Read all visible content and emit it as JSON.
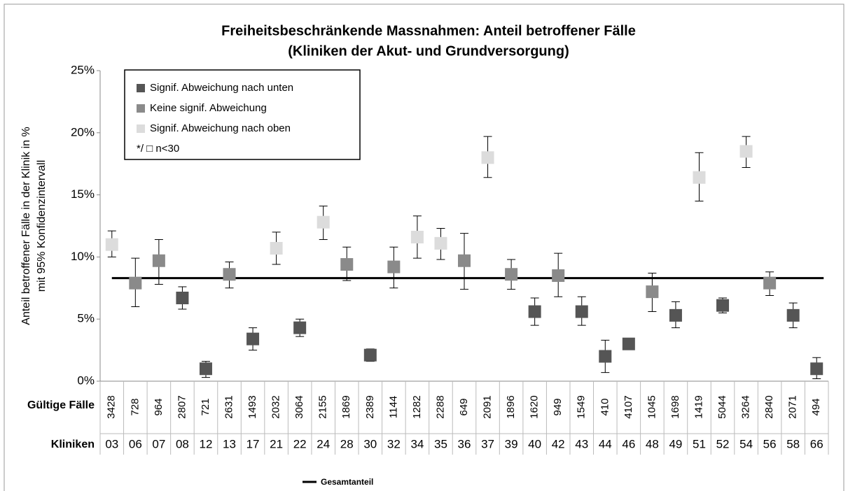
{
  "chart_data": {
    "type": "errorbar",
    "title": [
      "Freiheitsbeschränkende Massnahmen: Anteil betroffener Fälle",
      "(Kliniken der Akut- und Grundversorgung)"
    ],
    "ylabel": [
      "Anteil betroffener Fälle in der Klinik in %",
      "mit 95% Konfidenzintervall"
    ],
    "row_labels": [
      "Gültige Fälle",
      "Kliniken"
    ],
    "categories": [
      "03",
      "06",
      "07",
      "08",
      "12",
      "13",
      "17",
      "21",
      "22",
      "24",
      "28",
      "30",
      "32",
      "34",
      "35",
      "36",
      "37",
      "39",
      "40",
      "42",
      "43",
      "44",
      "46",
      "48",
      "49",
      "51",
      "52",
      "54",
      "56",
      "58",
      "66"
    ],
    "cases": [
      "3428",
      "728",
      "964",
      "2807",
      "721",
      "2631",
      "1493",
      "2032",
      "3064",
      "2155",
      "1869",
      "2389",
      "1144",
      "1282",
      "2288",
      "649",
      "2091",
      "1896",
      "1620",
      "949",
      "1549",
      "410",
      "4107",
      "1045",
      "1698",
      "1419",
      "5044",
      "3264",
      "2840",
      "2071",
      "494"
    ],
    "values": [
      11.0,
      7.9,
      9.7,
      6.7,
      1.0,
      8.6,
      3.4,
      10.7,
      4.3,
      12.8,
      9.4,
      2.1,
      9.2,
      11.6,
      11.1,
      9.7,
      18.0,
      8.6,
      5.6,
      8.5,
      5.6,
      2.0,
      3.0,
      7.2,
      5.3,
      16.4,
      6.1,
      18.5,
      7.9,
      5.3,
      1.0
    ],
    "lower": [
      10.0,
      6.0,
      7.8,
      5.8,
      0.3,
      7.5,
      2.5,
      9.4,
      3.6,
      11.4,
      8.1,
      1.6,
      7.5,
      9.9,
      9.8,
      7.4,
      16.4,
      7.4,
      4.5,
      6.8,
      4.5,
      0.7,
      2.6,
      5.6,
      4.3,
      14.5,
      5.5,
      17.2,
      6.9,
      4.3,
      0.2
    ],
    "upper": [
      12.1,
      9.9,
      11.4,
      7.6,
      1.6,
      9.6,
      4.3,
      12.0,
      5.0,
      14.1,
      10.8,
      2.6,
      10.8,
      13.3,
      12.3,
      11.9,
      19.7,
      9.8,
      6.7,
      10.3,
      6.8,
      3.3,
      3.4,
      8.7,
      6.4,
      18.4,
      6.7,
      19.7,
      8.8,
      6.3,
      1.9
    ],
    "groups": [
      2,
      1,
      1,
      0,
      0,
      1,
      0,
      2,
      0,
      2,
      1,
      0,
      1,
      2,
      2,
      1,
      2,
      1,
      0,
      1,
      0,
      0,
      0,
      1,
      0,
      2,
      0,
      2,
      1,
      0,
      0
    ],
    "legend": [
      {
        "name": "Signif. Abweichung nach unten",
        "color": "#555555"
      },
      {
        "name": "Keine signif. Abweichung",
        "color": "#8a8a8a"
      },
      {
        "name": "Signif. Abweichung nach oben",
        "color": "#dcdcdc"
      }
    ],
    "legend_note": "*/ □ n<30",
    "reference": {
      "name": "Gesamtanteil",
      "value": 8.3,
      "color": "#000000"
    },
    "ylim": [
      0,
      25
    ],
    "yticks": [
      {
        "value": 0,
        "label": "0%"
      },
      {
        "value": 5,
        "label": "5%"
      },
      {
        "value": 10,
        "label": "10%"
      },
      {
        "value": 15,
        "label": "15%"
      },
      {
        "value": 20,
        "label": "20%"
      },
      {
        "value": 25,
        "label": "25%"
      }
    ]
  }
}
